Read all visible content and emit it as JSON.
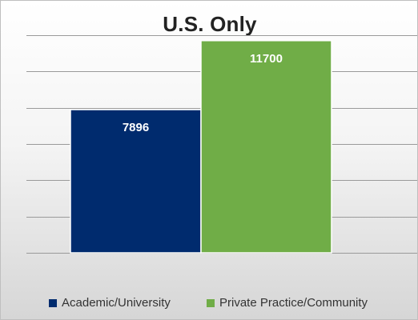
{
  "chart_data": {
    "type": "bar",
    "title": "U.S. Only",
    "categories": [
      "Academic/University",
      "Private Practice/Community"
    ],
    "values": [
      7896,
      11700
    ],
    "ylim": [
      0,
      12000
    ],
    "grid": true,
    "data_labels": true,
    "legend_position": "bottom",
    "colors": [
      "#002b6e",
      "#70ad47"
    ]
  }
}
